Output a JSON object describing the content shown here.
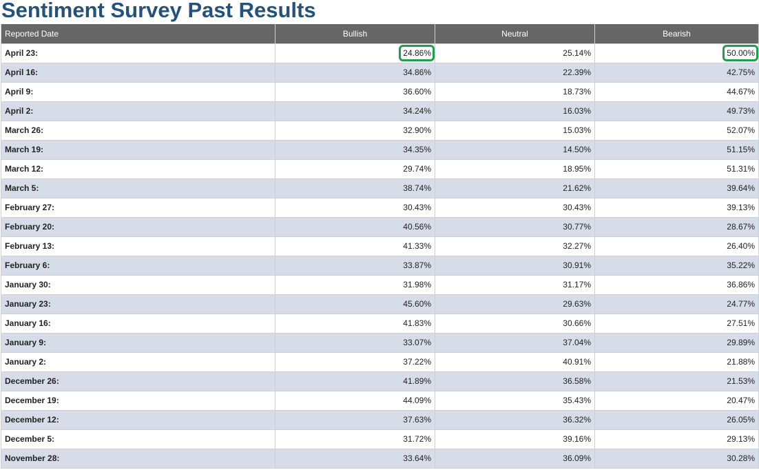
{
  "page": {
    "title": "Sentiment Survey Past Results"
  },
  "table": {
    "headers": [
      "Reported Date",
      "Bullish",
      "Neutral",
      "Bearish"
    ],
    "rows": [
      {
        "date": "April 23:",
        "bullish": "24.86%",
        "neutral": "25.14%",
        "bearish": "50.00%"
      },
      {
        "date": "April 16:",
        "bullish": "34.86%",
        "neutral": "22.39%",
        "bearish": "42.75%"
      },
      {
        "date": "April 9:",
        "bullish": "36.60%",
        "neutral": "18.73%",
        "bearish": "44.67%"
      },
      {
        "date": "April 2:",
        "bullish": "34.24%",
        "neutral": "16.03%",
        "bearish": "49.73%"
      },
      {
        "date": "March 26:",
        "bullish": "32.90%",
        "neutral": "15.03%",
        "bearish": "52.07%"
      },
      {
        "date": "March 19:",
        "bullish": "34.35%",
        "neutral": "14.50%",
        "bearish": "51.15%"
      },
      {
        "date": "March 12:",
        "bullish": "29.74%",
        "neutral": "18.95%",
        "bearish": "51.31%"
      },
      {
        "date": "March 5:",
        "bullish": "38.74%",
        "neutral": "21.62%",
        "bearish": "39.64%"
      },
      {
        "date": "February 27:",
        "bullish": "30.43%",
        "neutral": "30.43%",
        "bearish": "39.13%"
      },
      {
        "date": "February 20:",
        "bullish": "40.56%",
        "neutral": "30.77%",
        "bearish": "28.67%"
      },
      {
        "date": "February 13:",
        "bullish": "41.33%",
        "neutral": "32.27%",
        "bearish": "26.40%"
      },
      {
        "date": "February 6:",
        "bullish": "33.87%",
        "neutral": "30.91%",
        "bearish": "35.22%"
      },
      {
        "date": "January 30:",
        "bullish": "31.98%",
        "neutral": "31.17%",
        "bearish": "36.86%"
      },
      {
        "date": "January 23:",
        "bullish": "45.60%",
        "neutral": "29.63%",
        "bearish": "24.77%"
      },
      {
        "date": "January 16:",
        "bullish": "41.83%",
        "neutral": "30.66%",
        "bearish": "27.51%"
      },
      {
        "date": "January 9:",
        "bullish": "33.07%",
        "neutral": "37.04%",
        "bearish": "29.89%"
      },
      {
        "date": "January 2:",
        "bullish": "37.22%",
        "neutral": "40.91%",
        "bearish": "21.88%"
      },
      {
        "date": "December 26:",
        "bullish": "41.89%",
        "neutral": "36.58%",
        "bearish": "21.53%"
      },
      {
        "date": "December 19:",
        "bullish": "44.09%",
        "neutral": "35.43%",
        "bearish": "20.47%"
      },
      {
        "date": "December 12:",
        "bullish": "37.63%",
        "neutral": "36.32%",
        "bearish": "26.05%"
      },
      {
        "date": "December 5:",
        "bullish": "31.72%",
        "neutral": "39.16%",
        "bearish": "29.13%"
      },
      {
        "date": "November 28:",
        "bullish": "33.64%",
        "neutral": "36.09%",
        "bearish": "30.28%"
      }
    ]
  },
  "highlights": {
    "circled_cells": [
      {
        "row": 0,
        "column": "bullish"
      },
      {
        "row": 0,
        "column": "bearish"
      }
    ],
    "circle_color": "#1ea04a"
  },
  "colors": {
    "title": "#24527a",
    "header_bg": "#666666",
    "row_alt_bg": "#d6dce8"
  }
}
